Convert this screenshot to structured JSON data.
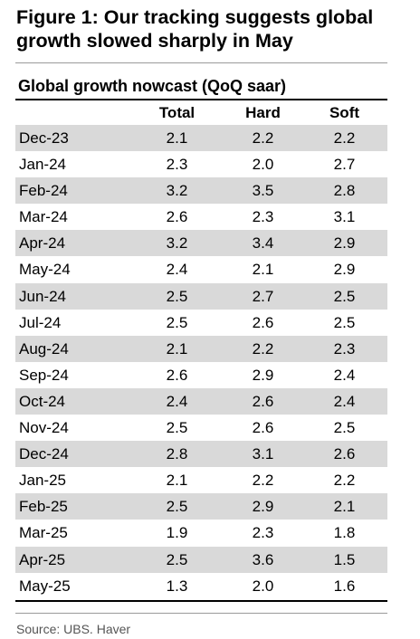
{
  "figure": {
    "title": "Figure 1: Our tracking suggests global growth slowed sharply in May",
    "source": "Source: UBS. Haver"
  },
  "chart_data": {
    "type": "table",
    "title": "Global growth nowcast (QoQ saar)",
    "columns": [
      "Total",
      "Hard",
      "Soft"
    ],
    "rows": [
      {
        "label": "Dec-23",
        "values": [
          "2.1",
          "2.2",
          "2.2"
        ]
      },
      {
        "label": "Jan-24",
        "values": [
          "2.3",
          "2.0",
          "2.7"
        ]
      },
      {
        "label": "Feb-24",
        "values": [
          "3.2",
          "3.5",
          "2.8"
        ]
      },
      {
        "label": "Mar-24",
        "values": [
          "2.6",
          "2.3",
          "3.1"
        ]
      },
      {
        "label": "Apr-24",
        "values": [
          "3.2",
          "3.4",
          "2.9"
        ]
      },
      {
        "label": "May-24",
        "values": [
          "2.4",
          "2.1",
          "2.9"
        ]
      },
      {
        "label": "Jun-24",
        "values": [
          "2.5",
          "2.7",
          "2.5"
        ]
      },
      {
        "label": "Jul-24",
        "values": [
          "2.5",
          "2.6",
          "2.5"
        ]
      },
      {
        "label": "Aug-24",
        "values": [
          "2.1",
          "2.2",
          "2.3"
        ]
      },
      {
        "label": "Sep-24",
        "values": [
          "2.6",
          "2.9",
          "2.4"
        ]
      },
      {
        "label": "Oct-24",
        "values": [
          "2.4",
          "2.6",
          "2.4"
        ]
      },
      {
        "label": "Nov-24",
        "values": [
          "2.5",
          "2.6",
          "2.5"
        ]
      },
      {
        "label": "Dec-24",
        "values": [
          "2.8",
          "3.1",
          "2.6"
        ]
      },
      {
        "label": "Jan-25",
        "values": [
          "2.1",
          "2.2",
          "2.2"
        ]
      },
      {
        "label": "Feb-25",
        "values": [
          "2.5",
          "2.9",
          "2.1"
        ]
      },
      {
        "label": "Mar-25",
        "values": [
          "1.9",
          "2.3",
          "1.8"
        ]
      },
      {
        "label": "Apr-25",
        "values": [
          "2.5",
          "3.6",
          "1.5"
        ]
      },
      {
        "label": "May-25",
        "values": [
          "1.3",
          "2.0",
          "1.6"
        ]
      }
    ],
    "shade_color": "#d9d9d9"
  }
}
